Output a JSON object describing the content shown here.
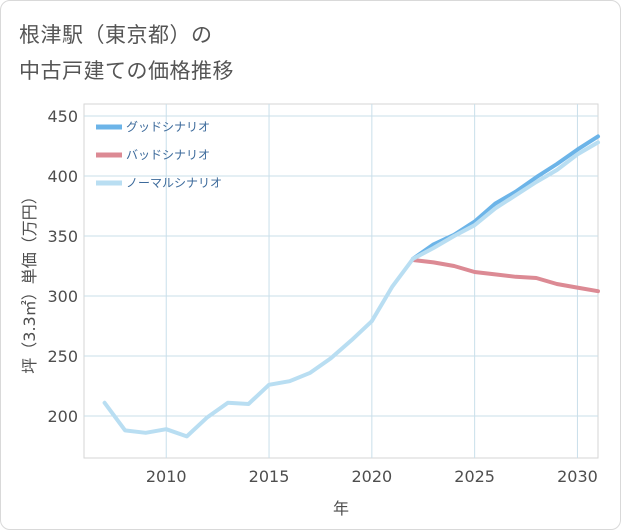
{
  "title_lines": [
    "根津駅（東京都）の",
    "中古戸建ての価格推移"
  ],
  "chart_data": {
    "type": "line",
    "title": "根津駅（東京都）の中古戸建ての価格推移",
    "xlabel": "年",
    "ylabel": "坪（3.3㎡）単価（万円）",
    "xlim": [
      2006,
      2031
    ],
    "ylim": [
      165,
      460
    ],
    "xticks": [
      2010,
      2015,
      2020,
      2025,
      2030
    ],
    "yticks": [
      200,
      250,
      300,
      350,
      400,
      450
    ],
    "grid": true,
    "legend_position": "top-left",
    "series": [
      {
        "name": "グッドシナリオ",
        "color": "#6cb4e8",
        "x": [
          2022,
          2023,
          2024,
          2025,
          2026,
          2027,
          2028,
          2029,
          2030,
          2031
        ],
        "y": [
          331,
          343,
          351,
          362,
          377,
          387,
          399,
          410,
          422,
          433
        ]
      },
      {
        "name": "バッドシナリオ",
        "color": "#dc8a94",
        "x": [
          2022,
          2023,
          2024,
          2025,
          2026,
          2027,
          2028,
          2029,
          2030,
          2031
        ],
        "y": [
          330,
          328,
          325,
          320,
          318,
          316,
          315,
          310,
          307,
          304
        ]
      },
      {
        "name": "ノーマルシナリオ",
        "color": "#b9def2",
        "x": [
          2007,
          2008,
          2009,
          2010,
          2011,
          2012,
          2013,
          2014,
          2015,
          2016,
          2017,
          2018,
          2019,
          2020,
          2021,
          2022,
          2023,
          2024,
          2025,
          2026,
          2027,
          2028,
          2029,
          2030,
          2031
        ],
        "y": [
          211,
          188,
          186,
          189,
          183,
          199,
          211,
          210,
          226,
          229,
          236,
          248,
          263,
          279,
          308,
          331,
          340,
          350,
          359,
          373,
          384,
          395,
          405,
          418,
          428
        ]
      }
    ]
  }
}
